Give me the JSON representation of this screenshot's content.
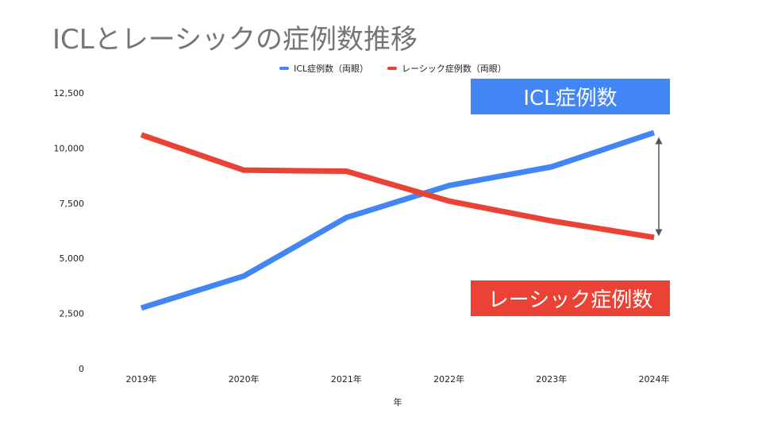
{
  "page": {
    "title": "ICLとレーシックの症例数推移"
  },
  "legend": {
    "items": [
      {
        "label": "ICL症例数（両眼）",
        "color": "#4285f4"
      },
      {
        "label": "レーシック症例数（両眼）",
        "color": "#ea4335"
      }
    ]
  },
  "callouts": {
    "icl": {
      "label": "ICL症例数",
      "color": "#4285f4"
    },
    "lasik": {
      "label": "レーシック症例数",
      "color": "#ea4335"
    }
  },
  "chart_data": {
    "type": "line",
    "title": "ICLとレーシックの症例数推移",
    "xlabel": "年",
    "ylabel": "",
    "categories": [
      "2019年",
      "2020年",
      "2021年",
      "2022年",
      "2023年",
      "2024年"
    ],
    "yticks": [
      "0",
      "2,500",
      "5,000",
      "7,500",
      "10,000",
      "12,500"
    ],
    "ylim": [
      0,
      12500
    ],
    "grid": false,
    "legend_position": "top",
    "series": [
      {
        "name": "ICL症例数（両眼）",
        "color": "#4285f4",
        "values": [
          2750,
          4200,
          6850,
          8300,
          9150,
          10700
        ]
      },
      {
        "name": "レーシック症例数（両眼）",
        "color": "#ea4335",
        "values": [
          10600,
          9000,
          8950,
          7600,
          6700,
          5950
        ]
      }
    ],
    "annotation": "double-headed arrow between the 2024 values"
  }
}
